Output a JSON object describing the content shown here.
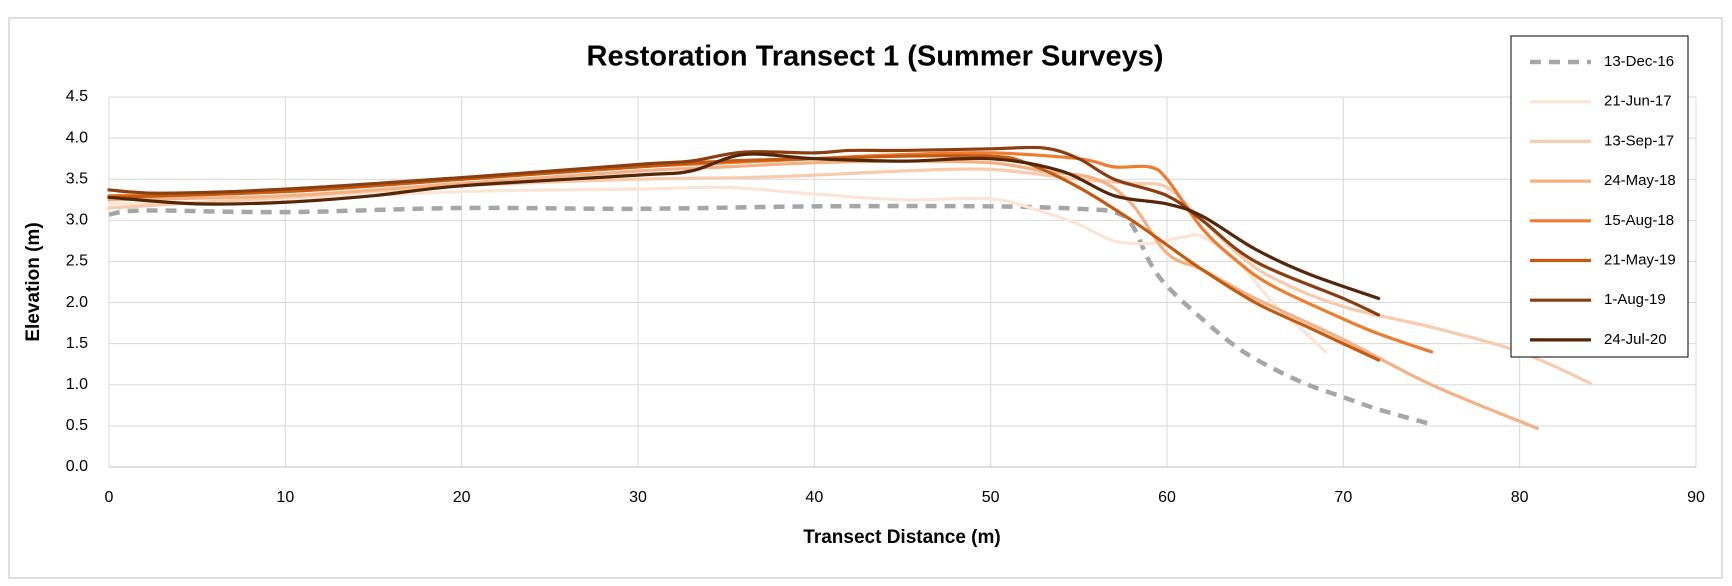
{
  "chart_data": {
    "type": "line",
    "title": "Restoration Transect 1 (Summer Surveys)",
    "x_label": "Transect Distance (m)",
    "y_label": "Elevation (m)",
    "xlim": [
      0,
      90
    ],
    "xticks": [
      0,
      10,
      20,
      30,
      40,
      50,
      60,
      70,
      80,
      90
    ],
    "ylim": [
      0,
      4.5
    ],
    "yticks": [
      {
        "value": 0,
        "label": "0.0"
      },
      0.5,
      {
        "value": 1,
        "label": "1.0"
      },
      1.5,
      {
        "value": 2,
        "label": "2.0"
      },
      2.5,
      {
        "value": 3,
        "label": "3.0"
      },
      3.5,
      {
        "value": 4,
        "label": "4.0"
      },
      4.5
    ],
    "grid": true,
    "legend": "top-right",
    "series": [
      {
        "name": "13-Dec-16",
        "color": "#a6a6a6",
        "dashed": true,
        "x": [
          0,
          2,
          10,
          20,
          30,
          40,
          50,
          55,
          57,
          58,
          59,
          60,
          62,
          64,
          66,
          68,
          70,
          72,
          75
        ],
        "values": [
          3.07,
          3.12,
          3.1,
          3.15,
          3.14,
          3.17,
          3.17,
          3.14,
          3.1,
          2.95,
          2.5,
          2.2,
          1.8,
          1.45,
          1.2,
          1.0,
          0.85,
          0.7,
          0.52
        ]
      },
      {
        "name": "21-Jun-17",
        "color": "#fbe5d6",
        "x": [
          0,
          10,
          20,
          30,
          35,
          40,
          45,
          50,
          53,
          55,
          57,
          59,
          61,
          62,
          64,
          66,
          68,
          69
        ],
        "values": [
          3.2,
          3.25,
          3.35,
          3.38,
          3.4,
          3.32,
          3.25,
          3.26,
          3.1,
          2.95,
          2.75,
          2.72,
          2.8,
          2.8,
          2.5,
          2.0,
          1.6,
          1.4
        ]
      },
      {
        "name": "13-Sep-17",
        "color": "#f8cbad",
        "x": [
          0,
          10,
          20,
          30,
          36,
          40,
          45,
          50,
          55,
          58,
          60,
          62,
          64,
          66,
          70,
          75,
          80,
          84
        ],
        "values": [
          3.15,
          3.28,
          3.42,
          3.5,
          3.52,
          3.55,
          3.6,
          3.62,
          3.5,
          3.45,
          3.4,
          3.0,
          2.6,
          2.3,
          1.95,
          1.7,
          1.4,
          1.02
        ]
      },
      {
        "name": "24-May-18",
        "color": "#f4b183",
        "x": [
          0,
          10,
          20,
          30,
          35,
          40,
          45,
          50,
          53,
          56,
          58,
          60,
          62,
          65,
          70,
          75,
          81
        ],
        "values": [
          3.25,
          3.3,
          3.45,
          3.6,
          3.65,
          3.7,
          3.72,
          3.7,
          3.6,
          3.5,
          3.2,
          2.6,
          2.4,
          2.05,
          1.55,
          1.0,
          0.47
        ]
      },
      {
        "name": "15-Aug-18",
        "color": "#ed7d31",
        "x": [
          0,
          10,
          20,
          30,
          35,
          40,
          45,
          50,
          55,
          57,
          59,
          60,
          62,
          64,
          66,
          70,
          72,
          75
        ],
        "values": [
          3.3,
          3.35,
          3.5,
          3.65,
          3.7,
          3.75,
          3.8,
          3.82,
          3.75,
          3.65,
          3.65,
          3.5,
          2.9,
          2.5,
          2.2,
          1.8,
          1.62,
          1.4
        ]
      },
      {
        "name": "21-May-19",
        "color": "#c55a11",
        "x": [
          0,
          10,
          20,
          30,
          35,
          40,
          45,
          50,
          52,
          55,
          58,
          60,
          62,
          65,
          68,
          72
        ],
        "values": [
          3.28,
          3.35,
          3.5,
          3.65,
          3.72,
          3.75,
          3.78,
          3.78,
          3.7,
          3.4,
          3.0,
          2.7,
          2.4,
          2.0,
          1.7,
          1.3
        ]
      },
      {
        "name": "1-Aug-19",
        "color": "#8b3f10",
        "x": [
          0,
          3,
          10,
          20,
          30,
          33,
          36,
          40,
          42,
          45,
          50,
          53,
          55,
          57,
          60,
          62,
          65,
          70,
          72
        ],
        "values": [
          3.37,
          3.33,
          3.38,
          3.52,
          3.68,
          3.72,
          3.83,
          3.82,
          3.85,
          3.85,
          3.87,
          3.88,
          3.75,
          3.5,
          3.3,
          3.0,
          2.5,
          2.05,
          1.85
        ]
      },
      {
        "name": "24-Jul-20",
        "color": "#552709",
        "x": [
          0,
          5,
          10,
          15,
          20,
          30,
          33,
          36,
          40,
          45,
          50,
          54,
          57,
          60,
          62,
          65,
          68,
          72
        ],
        "values": [
          3.28,
          3.2,
          3.22,
          3.3,
          3.42,
          3.55,
          3.6,
          3.8,
          3.75,
          3.72,
          3.75,
          3.6,
          3.3,
          3.2,
          3.05,
          2.65,
          2.35,
          2.05
        ]
      }
    ]
  }
}
